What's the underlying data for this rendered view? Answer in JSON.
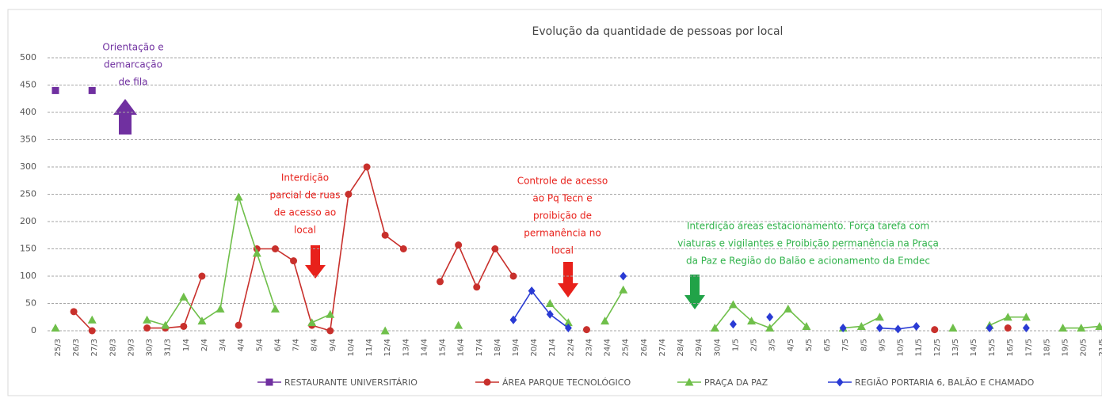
{
  "chart_data": {
    "type": "line",
    "title": "Evolução da quantidade de pessoas por local",
    "categories": [
      "25/3",
      "26/3",
      "27/3",
      "28/3",
      "29/3",
      "30/3",
      "31/3",
      "1/4",
      "2/4",
      "3/4",
      "4/4",
      "5/4",
      "6/4",
      "7/4",
      "8/4",
      "9/4",
      "10/4",
      "11/4",
      "12/4",
      "13/4",
      "14/4",
      "15/4",
      "16/4",
      "17/4",
      "18/4",
      "19/4",
      "20/4",
      "21/4",
      "22/4",
      "23/4",
      "24/4",
      "25/4",
      "26/4",
      "27/4",
      "28/4",
      "29/4",
      "30/4",
      "1/5",
      "2/5",
      "3/5",
      "4/5",
      "5/5",
      "6/5",
      "7/5",
      "8/5",
      "9/5",
      "10/5",
      "11/5",
      "12/5",
      "13/5",
      "14/5",
      "15/5",
      "16/5",
      "17/5",
      "18/5",
      "19/5",
      "20/5",
      "21/5"
    ],
    "series": [
      {
        "name": "RESTAURANTE UNIVERSITÁRIO",
        "color": "#7030a0",
        "marker": "square",
        "values": [
          440,
          null,
          440,
          null,
          null,
          null,
          null,
          null,
          null,
          null,
          null,
          null,
          null,
          null,
          null,
          null,
          null,
          null,
          null,
          null,
          null,
          null,
          null,
          null,
          null,
          null,
          null,
          null,
          null,
          null,
          null,
          null,
          null,
          null,
          null,
          null,
          null,
          null,
          null,
          null,
          null,
          null,
          null,
          null,
          null,
          null,
          null,
          null,
          null,
          null,
          null,
          null,
          null,
          null,
          null,
          null,
          null,
          null
        ]
      },
      {
        "name": "ÁREA PARQUE TECNOLÓGICO",
        "color": "#c8302c",
        "marker": "circle",
        "values": [
          null,
          35,
          0,
          null,
          null,
          5,
          5,
          8,
          100,
          null,
          10,
          150,
          150,
          128,
          10,
          0,
          250,
          300,
          175,
          150,
          null,
          90,
          157,
          80,
          150,
          100,
          null,
          null,
          null,
          2,
          null,
          null,
          null,
          null,
          null,
          null,
          null,
          null,
          null,
          null,
          null,
          null,
          null,
          null,
          null,
          null,
          null,
          null,
          2,
          null,
          null,
          null,
          5,
          null,
          null,
          null,
          null,
          null
        ]
      },
      {
        "name": "PRAÇA DA PAZ",
        "color": "#6fbf4a",
        "marker": "triangle",
        "values": [
          5,
          null,
          20,
          null,
          null,
          20,
          10,
          62,
          18,
          40,
          245,
          142,
          40,
          null,
          15,
          30,
          null,
          null,
          0,
          null,
          null,
          null,
          10,
          null,
          null,
          null,
          null,
          50,
          15,
          null,
          18,
          75,
          null,
          null,
          null,
          null,
          5,
          48,
          18,
          5,
          40,
          8,
          null,
          5,
          8,
          25,
          null,
          null,
          null,
          5,
          null,
          10,
          25,
          25,
          null,
          5,
          5,
          8
        ]
      },
      {
        "name": "REGIÃO PORTARIA 6, BALÃO E CHAMADO",
        "color": "#2a3bd4",
        "marker": "diamond",
        "values": [
          null,
          null,
          null,
          null,
          null,
          null,
          null,
          null,
          null,
          null,
          null,
          null,
          null,
          null,
          null,
          null,
          null,
          null,
          null,
          null,
          null,
          null,
          null,
          null,
          null,
          20,
          73,
          30,
          5,
          null,
          null,
          100,
          null,
          null,
          null,
          null,
          null,
          12,
          null,
          25,
          null,
          null,
          null,
          5,
          null,
          5,
          3,
          8,
          null,
          null,
          null,
          5,
          null,
          5,
          null,
          null,
          null,
          null
        ]
      }
    ],
    "ylim": [
      0,
      500
    ],
    "yticks": [
      0,
      50,
      100,
      150,
      200,
      250,
      300,
      350,
      400,
      450,
      500
    ],
    "grid": true,
    "annotations": [
      {
        "lines": [
          "Orientação e",
          "demarcação",
          "de fila"
        ],
        "color": "#7030a0"
      },
      {
        "lines": [
          "Interdição",
          "parcial de ruas",
          "de acesso ao",
          "local"
        ],
        "color": "#e8211b"
      },
      {
        "lines": [
          "Controle de  acesso",
          "ao Pq Tecn e",
          "proibição de",
          "permanência no",
          "local"
        ],
        "color": "#e8211b"
      },
      {
        "lines": [
          "Interdição áreas estacionamento. Força tarefa com",
          "viaturas e vigilantes e Proibição permanência na Praça",
          "da Paz e Região do Balão e acionamento da Emdec"
        ],
        "color": "#2fb24a"
      }
    ]
  }
}
